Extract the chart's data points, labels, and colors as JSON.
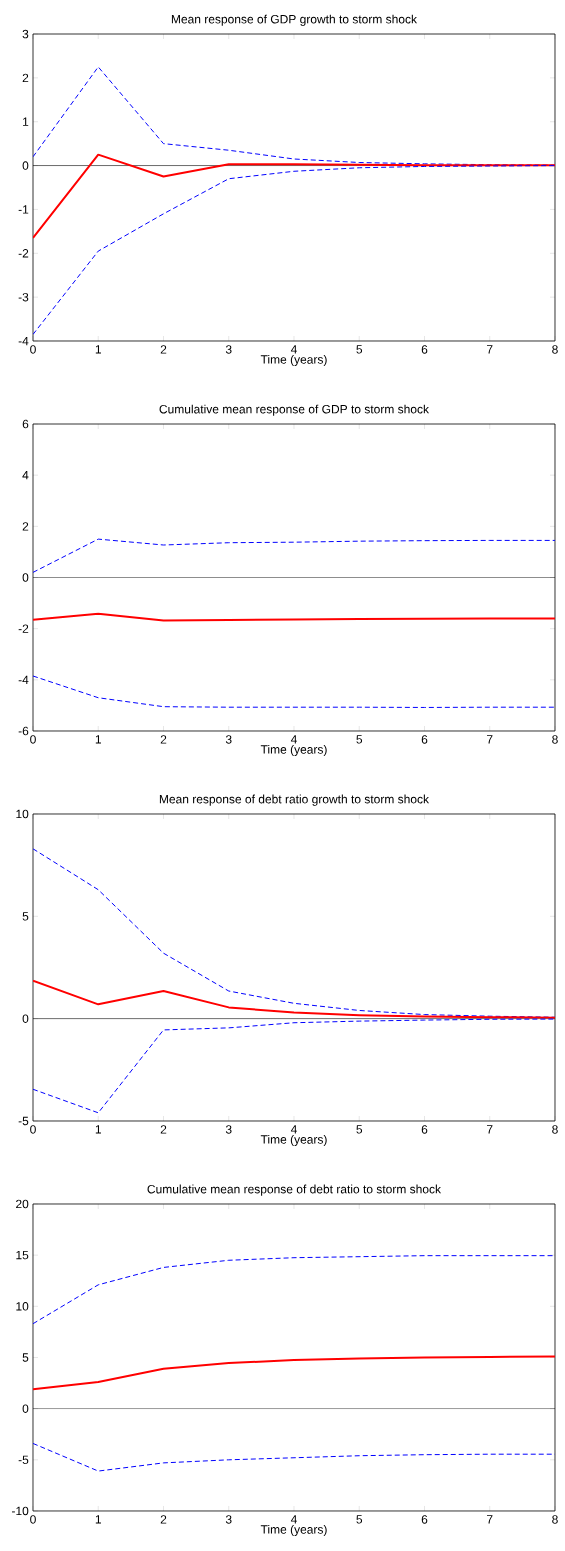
{
  "chart_data": [
    {
      "type": "line",
      "title": "Mean response of GDP growth to storm shock",
      "xlabel": "Time (years)",
      "x": [
        0,
        1,
        2,
        3,
        4,
        5,
        6,
        7,
        8
      ],
      "xlim": [
        0,
        8
      ],
      "xticks": [
        0,
        1,
        2,
        3,
        4,
        5,
        6,
        7,
        8
      ],
      "ylim": [
        -4,
        3
      ],
      "yticks": [
        -4,
        -3,
        -2,
        -1,
        0,
        1,
        2,
        3
      ],
      "ref_lines": [
        {
          "axis": "y",
          "value": 0,
          "color": "#000000"
        }
      ],
      "series": [
        {
          "color": "#0000ff",
          "line_style": "dashed",
          "values": [
            0.2,
            2.25,
            0.5,
            0.35,
            0.15,
            0.07,
            0.04,
            0.02,
            0.01
          ]
        },
        {
          "color": "#ff0000",
          "line_style": "solid",
          "values": [
            -1.65,
            0.25,
            -0.25,
            0.03,
            0.03,
            0.02,
            0.01,
            0.01,
            0.01
          ]
        },
        {
          "color": "#0000ff",
          "line_style": "dashed",
          "values": [
            -3.85,
            -1.95,
            -1.1,
            -0.3,
            -0.13,
            -0.05,
            -0.02,
            -0.01,
            0.0
          ]
        }
      ]
    },
    {
      "type": "line",
      "title": "Cumulative mean response of GDP to storm shock",
      "xlabel": "Time (years)",
      "x": [
        0,
        1,
        2,
        3,
        4,
        5,
        6,
        7,
        8
      ],
      "xlim": [
        0,
        8
      ],
      "xticks": [
        0,
        1,
        2,
        3,
        4,
        5,
        6,
        7,
        8
      ],
      "ylim": [
        -6,
        6
      ],
      "yticks": [
        -6,
        -4,
        -2,
        0,
        2,
        4,
        6
      ],
      "ref_lines": [
        {
          "axis": "y",
          "value": 0,
          "color": "#000000"
        }
      ],
      "series": [
        {
          "color": "#0000ff",
          "line_style": "dashed",
          "values": [
            0.2,
            1.5,
            1.27,
            1.36,
            1.38,
            1.42,
            1.44,
            1.45,
            1.45
          ]
        },
        {
          "color": "#ff0000",
          "line_style": "solid",
          "values": [
            -1.65,
            -1.42,
            -1.68,
            -1.66,
            -1.64,
            -1.62,
            -1.61,
            -1.6,
            -1.6
          ]
        },
        {
          "color": "#0000ff",
          "line_style": "dashed",
          "values": [
            -3.85,
            -4.7,
            -5.05,
            -5.07,
            -5.07,
            -5.07,
            -5.08,
            -5.07,
            -5.07
          ]
        }
      ]
    },
    {
      "type": "line",
      "title": "Mean response of debt ratio growth to storm shock",
      "xlabel": "Time (years)",
      "x": [
        0,
        1,
        2,
        3,
        4,
        5,
        6,
        7,
        8
      ],
      "xlim": [
        0,
        8
      ],
      "xticks": [
        0,
        1,
        2,
        3,
        4,
        5,
        6,
        7,
        8
      ],
      "ylim": [
        -5,
        10
      ],
      "yticks": [
        -5,
        0,
        5,
        10
      ],
      "ref_lines": [
        {
          "axis": "y",
          "value": 0,
          "color": "#000000"
        }
      ],
      "series": [
        {
          "color": "#0000ff",
          "line_style": "dashed",
          "values": [
            8.3,
            6.3,
            3.2,
            1.35,
            0.75,
            0.4,
            0.2,
            0.12,
            0.07
          ]
        },
        {
          "color": "#ff0000",
          "line_style": "solid",
          "values": [
            1.85,
            0.7,
            1.35,
            0.55,
            0.3,
            0.17,
            0.1,
            0.07,
            0.05
          ]
        },
        {
          "color": "#0000ff",
          "line_style": "dashed",
          "values": [
            -3.45,
            -4.6,
            -0.55,
            -0.45,
            -0.2,
            -0.12,
            -0.07,
            -0.03,
            -0.02
          ]
        }
      ]
    },
    {
      "type": "line",
      "title": "Cumulative mean response of debt ratio to storm shock",
      "xlabel": "Time (years)",
      "x": [
        0,
        1,
        2,
        3,
        4,
        5,
        6,
        7,
        8
      ],
      "xlim": [
        0,
        8
      ],
      "xticks": [
        0,
        1,
        2,
        3,
        4,
        5,
        6,
        7,
        8
      ],
      "ylim": [
        -10,
        20
      ],
      "yticks": [
        -10,
        -5,
        0,
        5,
        10,
        15,
        20
      ],
      "ref_lines": [
        {
          "axis": "y",
          "value": 0,
          "color": "#000000"
        }
      ],
      "series": [
        {
          "color": "#0000ff",
          "line_style": "dashed",
          "values": [
            8.3,
            12.1,
            13.8,
            14.5,
            14.75,
            14.85,
            14.95,
            14.95,
            14.95
          ]
        },
        {
          "color": "#ff0000",
          "line_style": "solid",
          "values": [
            1.9,
            2.6,
            3.9,
            4.45,
            4.75,
            4.9,
            5.0,
            5.05,
            5.1
          ]
        },
        {
          "color": "#0000ff",
          "line_style": "dashed",
          "values": [
            -3.4,
            -6.1,
            -5.3,
            -5.0,
            -4.8,
            -4.6,
            -4.5,
            -4.45,
            -4.45
          ]
        }
      ]
    }
  ]
}
